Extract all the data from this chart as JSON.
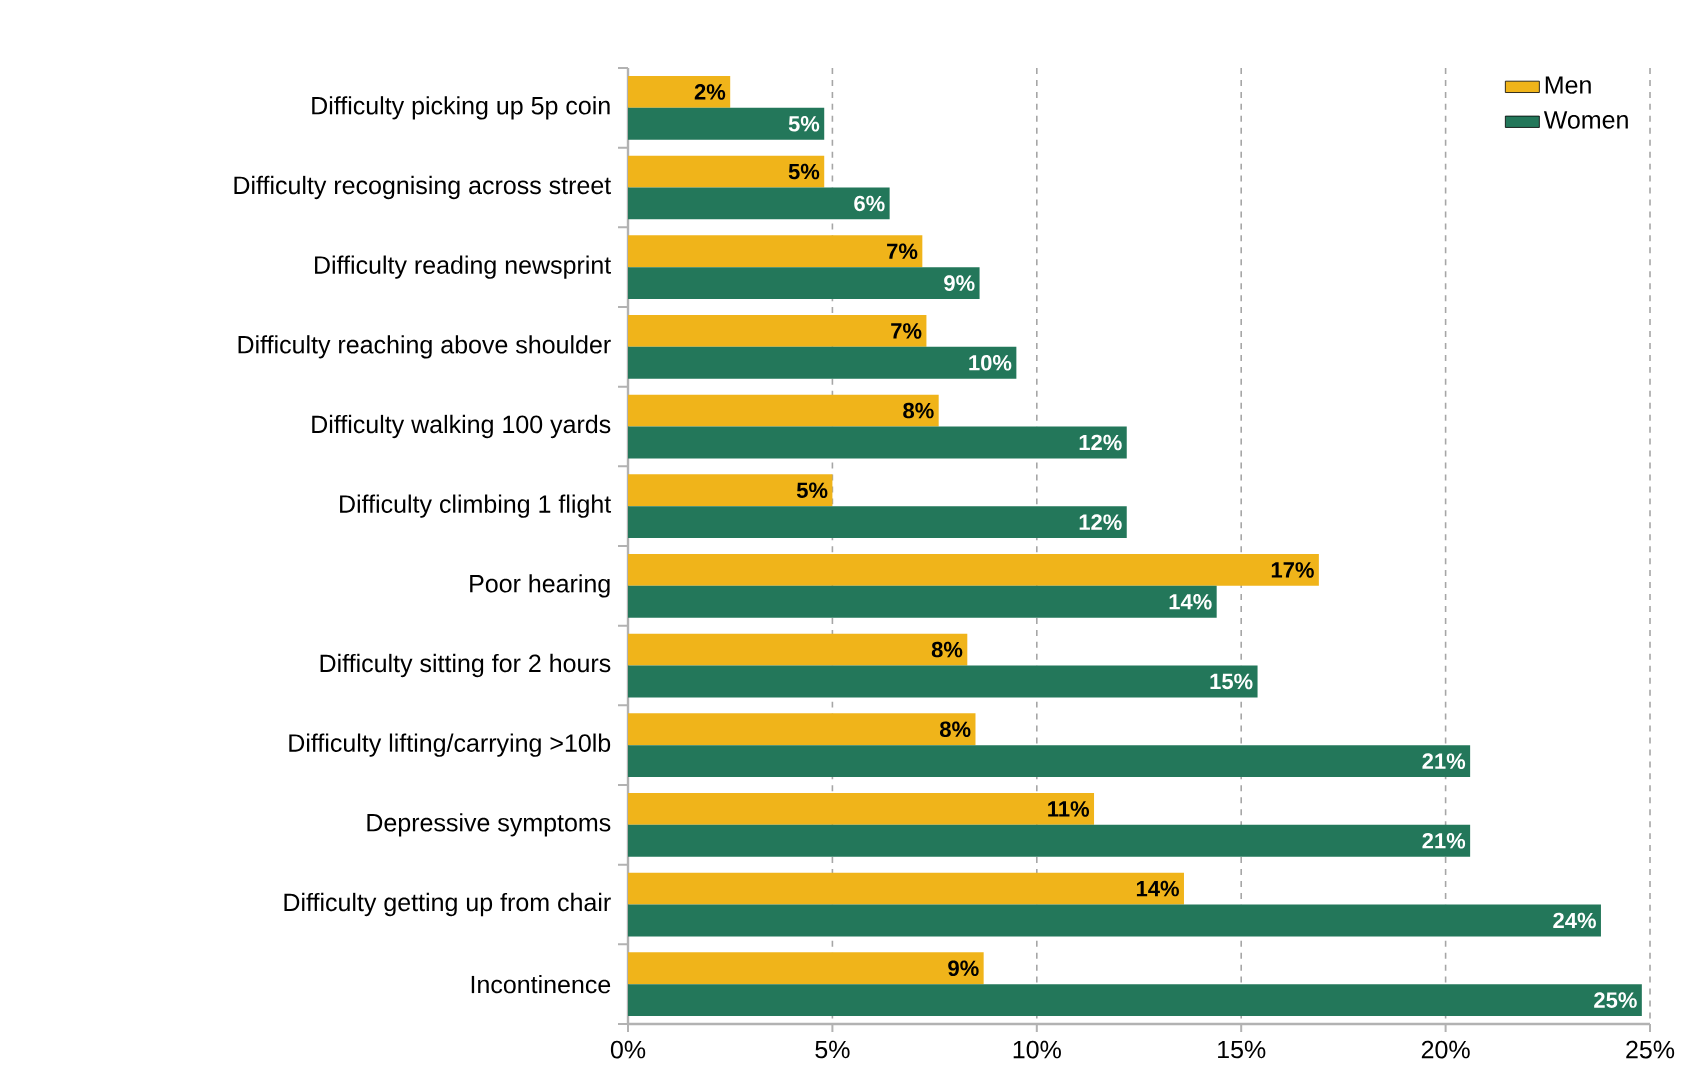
{
  "chart_data": {
    "type": "bar",
    "orientation": "horizontal",
    "categories": [
      "Difficulty picking up 5p coin",
      "Difficulty recognising across street",
      "Difficulty reading newsprint",
      "Difficulty reaching above shoulder",
      "Difficulty walking 100 yards",
      "Difficulty climbing 1 flight",
      "Poor hearing",
      "Difficulty sitting for 2 hours",
      "Difficulty lifting/carrying >10lb",
      "Depressive symptoms",
      "Difficulty getting up from chair",
      "Incontinence"
    ],
    "series": [
      {
        "name": "Men",
        "color": "#f0b41a",
        "values": [
          2.5,
          4.8,
          7.2,
          7.3,
          7.6,
          5.0,
          16.9,
          8.3,
          8.5,
          11.4,
          13.6,
          8.7
        ],
        "value_labels": [
          "2%",
          "5%",
          "7%",
          "7%",
          "8%",
          "5%",
          "17%",
          "8%",
          "8%",
          "11%",
          "14%",
          "9%"
        ]
      },
      {
        "name": "Women",
        "color": "#23775a",
        "values": [
          4.8,
          6.4,
          8.6,
          9.5,
          12.2,
          12.2,
          14.4,
          15.4,
          20.6,
          20.6,
          23.8,
          24.8
        ],
        "value_labels": [
          "5%",
          "6%",
          "9%",
          "10%",
          "12%",
          "12%",
          "14%",
          "15%",
          "21%",
          "21%",
          "24%",
          "25%"
        ]
      }
    ],
    "xlim": [
      0,
      25
    ],
    "xticks": [
      {
        "value": 0,
        "label": "0%"
      },
      {
        "value": 5,
        "label": "5%"
      },
      {
        "value": 10,
        "label": "10%"
      },
      {
        "value": 15,
        "label": "15%"
      },
      {
        "value": 20,
        "label": "20%"
      },
      {
        "value": 25,
        "label": "25%"
      }
    ],
    "grid": "x",
    "legend": "top right"
  }
}
